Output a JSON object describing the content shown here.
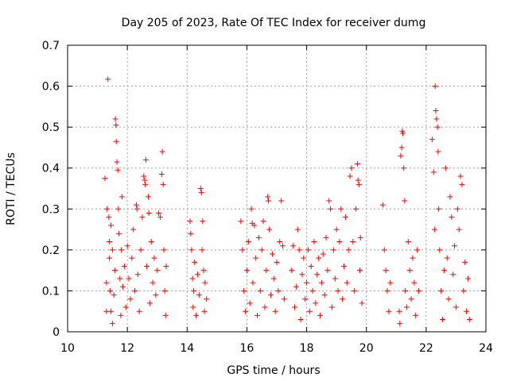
{
  "chart_data": {
    "type": "scatter",
    "title": "Day 205 of 2023, Rate Of TEC Index for receiver dumg",
    "xlabel": "GPS time / hours",
    "ylabel": "ROTI / TECUs",
    "xlim": [
      10,
      24
    ],
    "ylim": [
      0,
      0.7
    ],
    "xticks": [
      10,
      12,
      14,
      16,
      18,
      20,
      22,
      24
    ],
    "xtick_labels": [
      "10",
      "12",
      "14",
      "16",
      "18",
      "20",
      "22",
      "24"
    ],
    "yticks": [
      0,
      0.1,
      0.2,
      0.3,
      0.4,
      0.5,
      0.6,
      0.7
    ],
    "ytick_labels": [
      "0",
      "0.1",
      "0.2",
      "0.3",
      "0.4",
      "0.5",
      "0.6",
      "0.7"
    ],
    "grid": true,
    "marker": "+",
    "color": "#ff0000",
    "series": [
      {
        "name": "ROTI",
        "points": [
          [
            11.25,
            0.375
          ],
          [
            11.3,
            0.05
          ],
          [
            11.3,
            0.12
          ],
          [
            11.32,
            0.3
          ],
          [
            11.35,
            0.617
          ],
          [
            11.38,
            0.28
          ],
          [
            11.4,
            0.22
          ],
          [
            11.4,
            0.18
          ],
          [
            11.42,
            0.1
          ],
          [
            11.45,
            0.26
          ],
          [
            11.45,
            0.05
          ],
          [
            11.5,
            0.2
          ],
          [
            11.5,
            0.02
          ],
          [
            11.55,
            0.09
          ],
          [
            11.58,
            0.15
          ],
          [
            11.6,
            0.52
          ],
          [
            11.62,
            0.505
          ],
          [
            11.63,
            0.465
          ],
          [
            11.65,
            0.415
          ],
          [
            11.68,
            0.395
          ],
          [
            11.7,
            0.3
          ],
          [
            11.72,
            0.24
          ],
          [
            11.75,
            0.13
          ],
          [
            11.78,
            0.04
          ],
          [
            11.8,
            0.2
          ],
          [
            11.82,
            0.33
          ],
          [
            11.85,
            0.11
          ],
          [
            11.9,
            0.16
          ],
          [
            11.95,
            0.06
          ],
          [
            12.0,
            0.21
          ],
          [
            12.05,
            0.13
          ],
          [
            12.1,
            0.08
          ],
          [
            12.15,
            0.18
          ],
          [
            12.2,
            0.25
          ],
          [
            12.25,
            0.1
          ],
          [
            12.3,
            0.31
          ],
          [
            12.32,
            0.3
          ],
          [
            12.35,
            0.14
          ],
          [
            12.4,
            0.05
          ],
          [
            12.45,
            0.2
          ],
          [
            12.5,
            0.28
          ],
          [
            12.55,
            0.38
          ],
          [
            12.58,
            0.37
          ],
          [
            12.6,
            0.36
          ],
          [
            12.62,
            0.42
          ],
          [
            12.65,
            0.16
          ],
          [
            12.7,
            0.33
          ],
          [
            12.72,
            0.29
          ],
          [
            12.75,
            0.07
          ],
          [
            12.8,
            0.22
          ],
          [
            12.85,
            0.12
          ],
          [
            12.9,
            0.18
          ],
          [
            12.95,
            0.09
          ],
          [
            13.0,
            0.15
          ],
          [
            13.05,
            0.29
          ],
          [
            13.1,
            0.28
          ],
          [
            13.15,
            0.385
          ],
          [
            13.17,
            0.44
          ],
          [
            13.2,
            0.36
          ],
          [
            13.22,
            0.2
          ],
          [
            13.25,
            0.1
          ],
          [
            13.28,
            0.04
          ],
          [
            13.3,
            0.16
          ],
          [
            14.1,
            0.27
          ],
          [
            14.12,
            0.24
          ],
          [
            14.15,
            0.2
          ],
          [
            14.18,
            0.13
          ],
          [
            14.2,
            0.06
          ],
          [
            14.22,
            0.1
          ],
          [
            14.25,
            0.17
          ],
          [
            14.3,
            0.04
          ],
          [
            14.35,
            0.14
          ],
          [
            14.4,
            0.09
          ],
          [
            14.45,
            0.35
          ],
          [
            14.48,
            0.34
          ],
          [
            14.5,
            0.2
          ],
          [
            14.52,
            0.27
          ],
          [
            14.55,
            0.15
          ],
          [
            14.58,
            0.05
          ],
          [
            14.6,
            0.12
          ],
          [
            14.65,
            0.08
          ],
          [
            15.8,
            0.27
          ],
          [
            15.85,
            0.2
          ],
          [
            15.9,
            0.1
          ],
          [
            15.95,
            0.05
          ],
          [
            16.0,
            0.15
          ],
          [
            16.05,
            0.22
          ],
          [
            16.1,
            0.07
          ],
          [
            16.15,
            0.3
          ],
          [
            16.18,
            0.265
          ],
          [
            16.2,
            0.12
          ],
          [
            16.25,
            0.26
          ],
          [
            16.3,
            0.18
          ],
          [
            16.35,
            0.04
          ],
          [
            16.4,
            0.23
          ],
          [
            16.45,
            0.1
          ],
          [
            16.5,
            0.2
          ],
          [
            16.55,
            0.27
          ],
          [
            16.6,
            0.06
          ],
          [
            16.65,
            0.15
          ],
          [
            16.7,
            0.33
          ],
          [
            16.72,
            0.32
          ],
          [
            16.75,
            0.25
          ],
          [
            16.8,
            0.09
          ],
          [
            16.85,
            0.19
          ],
          [
            16.9,
            0.13
          ],
          [
            16.95,
            0.05
          ],
          [
            17.0,
            0.17
          ],
          [
            17.05,
            0.1
          ],
          [
            17.1,
            0.22
          ],
          [
            17.15,
            0.32
          ],
          [
            17.2,
            0.21
          ],
          [
            17.25,
            0.08
          ],
          [
            17.5,
            0.15
          ],
          [
            17.55,
            0.21
          ],
          [
            17.6,
            0.06
          ],
          [
            17.65,
            0.11
          ],
          [
            17.7,
            0.25
          ],
          [
            17.75,
            0.2
          ],
          [
            17.8,
            0.03
          ],
          [
            17.85,
            0.14
          ],
          [
            17.9,
            0.18
          ],
          [
            17.95,
            0.08
          ],
          [
            18.0,
            0.12
          ],
          [
            18.05,
            0.2
          ],
          [
            18.1,
            0.05
          ],
          [
            18.15,
            0.16
          ],
          [
            18.2,
            0.1
          ],
          [
            18.25,
            0.22
          ],
          [
            18.3,
            0.07
          ],
          [
            18.35,
            0.14
          ],
          [
            18.4,
            0.18
          ],
          [
            18.45,
            0.04
          ],
          [
            18.5,
            0.12
          ],
          [
            18.55,
            0.19
          ],
          [
            18.6,
            0.09
          ],
          [
            18.65,
            0.23
          ],
          [
            18.7,
            0.15
          ],
          [
            18.75,
            0.32
          ],
          [
            18.8,
            0.3
          ],
          [
            18.85,
            0.06
          ],
          [
            18.9,
            0.2
          ],
          [
            18.95,
            0.13
          ],
          [
            19.0,
            0.25
          ],
          [
            19.05,
            0.1
          ],
          [
            19.1,
            0.22
          ],
          [
            19.15,
            0.3
          ],
          [
            19.2,
            0.08
          ],
          [
            19.25,
            0.16
          ],
          [
            19.3,
            0.28
          ],
          [
            19.35,
            0.12
          ],
          [
            19.4,
            0.2
          ],
          [
            19.45,
            0.38
          ],
          [
            19.5,
            0.4
          ],
          [
            19.55,
            0.22
          ],
          [
            19.6,
            0.1
          ],
          [
            19.65,
            0.3
          ],
          [
            19.7,
            0.41
          ],
          [
            19.72,
            0.37
          ],
          [
            19.75,
            0.36
          ],
          [
            19.78,
            0.15
          ],
          [
            19.8,
            0.23
          ],
          [
            19.85,
            0.07
          ],
          [
            20.55,
            0.31
          ],
          [
            20.6,
            0.2
          ],
          [
            20.65,
            0.15
          ],
          [
            20.7,
            0.1
          ],
          [
            20.75,
            0.05
          ],
          [
            20.8,
            0.12
          ],
          [
            21.1,
            0.05
          ],
          [
            21.12,
            0.02
          ],
          [
            21.15,
            0.43
          ],
          [
            21.18,
            0.45
          ],
          [
            21.2,
            0.49
          ],
          [
            21.22,
            0.485
          ],
          [
            21.25,
            0.4
          ],
          [
            21.28,
            0.32
          ],
          [
            21.3,
            0.1
          ],
          [
            21.35,
            0.06
          ],
          [
            21.4,
            0.22
          ],
          [
            21.45,
            0.15
          ],
          [
            21.5,
            0.08
          ],
          [
            21.55,
            0.18
          ],
          [
            21.6,
            0.12
          ],
          [
            21.65,
            0.04
          ],
          [
            21.7,
            0.2
          ],
          [
            21.75,
            0.1
          ],
          [
            22.2,
            0.47
          ],
          [
            22.25,
            0.39
          ],
          [
            22.28,
            0.25
          ],
          [
            22.3,
            0.6
          ],
          [
            22.32,
            0.54
          ],
          [
            22.35,
            0.52
          ],
          [
            22.38,
            0.5
          ],
          [
            22.4,
            0.44
          ],
          [
            22.42,
            0.3
          ],
          [
            22.45,
            0.2
          ],
          [
            22.5,
            0.1
          ],
          [
            22.55,
            0.03
          ],
          [
            22.6,
            0.15
          ],
          [
            22.65,
            0.4
          ],
          [
            22.7,
            0.18
          ],
          [
            22.75,
            0.08
          ],
          [
            22.8,
            0.33
          ],
          [
            22.85,
            0.28
          ],
          [
            22.9,
            0.14
          ],
          [
            22.95,
            0.21
          ],
          [
            23.0,
            0.06
          ],
          [
            23.05,
            0.3
          ],
          [
            23.1,
            0.25
          ],
          [
            23.15,
            0.38
          ],
          [
            23.2,
            0.36
          ],
          [
            23.25,
            0.1
          ],
          [
            23.3,
            0.17
          ],
          [
            23.35,
            0.05
          ],
          [
            23.4,
            0.13
          ],
          [
            23.45,
            0.03
          ]
        ]
      }
    ]
  }
}
